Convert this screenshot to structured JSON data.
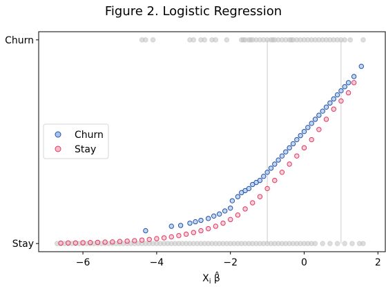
{
  "chart_data": {
    "type": "scatter",
    "title": "Figure 2. Logistic Regression",
    "xlabel": "X_i β̂",
    "ylabel": "",
    "xlim": [
      -7.2,
      2.2
    ],
    "ylim": [
      -0.04,
      1.04
    ],
    "x_ticks": [
      -6,
      -4,
      -2,
      0,
      2
    ],
    "x_tick_labels": [
      "−6",
      "−4",
      "−2",
      "0",
      "2"
    ],
    "y_ticks": [
      0,
      1
    ],
    "y_tick_labels": [
      "Stay",
      "Churn"
    ],
    "reference_lines_x": [
      -1,
      1
    ],
    "grid": false,
    "legend": {
      "placement": "center-left",
      "entries": [
        "Churn",
        "Stay"
      ]
    },
    "colors": {
      "churn_edge": "#1f4fa8",
      "churn_fill": "#a9c4ec",
      "stay_edge": "#e0365f",
      "stay_fill": "#f6bccb",
      "observed": "#bdbdbd",
      "refline": "#cccccc"
    },
    "series": [
      {
        "name": "Churn",
        "x": [
          -4.3,
          -3.6,
          -3.35,
          -3.1,
          -2.95,
          -2.8,
          -2.6,
          -2.45,
          -2.3,
          -2.15,
          -2.0,
          -1.95,
          -1.8,
          -1.7,
          -1.6,
          -1.5,
          -1.4,
          -1.3,
          -1.2,
          -1.1,
          -1.0,
          -0.9,
          -0.8,
          -0.7,
          -0.6,
          -0.5,
          -0.4,
          -0.3,
          -0.2,
          -0.1,
          0.0,
          0.1,
          0.2,
          0.3,
          0.4,
          0.5,
          0.6,
          0.7,
          0.8,
          0.9,
          1.0,
          1.1,
          1.2,
          1.35,
          1.55
        ],
        "y": [
          0.063,
          0.085,
          0.089,
          0.1,
          0.107,
          0.114,
          0.123,
          0.135,
          0.145,
          0.16,
          0.174,
          0.21,
          0.23,
          0.25,
          0.26,
          0.27,
          0.29,
          0.3,
          0.31,
          0.33,
          0.35,
          0.37,
          0.39,
          0.41,
          0.43,
          0.45,
          0.47,
          0.49,
          0.51,
          0.53,
          0.55,
          0.57,
          0.59,
          0.61,
          0.63,
          0.65,
          0.67,
          0.69,
          0.71,
          0.73,
          0.75,
          0.77,
          0.79,
          0.82,
          0.87
        ]
      },
      {
        "name": "Stay",
        "x": [
          -6.6,
          -6.4,
          -6.2,
          -6.0,
          -5.8,
          -5.6,
          -5.4,
          -5.2,
          -5.0,
          -4.8,
          -4.6,
          -4.4,
          -4.2,
          -4.0,
          -3.8,
          -3.6,
          -3.4,
          -3.2,
          -3.0,
          -2.8,
          -2.6,
          -2.4,
          -2.2,
          -2.0,
          -1.8,
          -1.6,
          -1.4,
          -1.2,
          -1.0,
          -0.8,
          -0.6,
          -0.4,
          -0.2,
          0.0,
          0.2,
          0.4,
          0.6,
          0.8,
          1.0,
          1.2,
          1.35
        ],
        "y": [
          0.002,
          0.003,
          0.003,
          0.004,
          0.005,
          0.006,
          0.007,
          0.008,
          0.01,
          0.012,
          0.014,
          0.017,
          0.02,
          0.024,
          0.028,
          0.033,
          0.039,
          0.046,
          0.054,
          0.063,
          0.073,
          0.085,
          0.1,
          0.118,
          0.14,
          0.17,
          0.2,
          0.23,
          0.27,
          0.31,
          0.35,
          0.39,
          0.43,
          0.47,
          0.51,
          0.56,
          0.61,
          0.66,
          0.7,
          0.74,
          0.79
        ]
      },
      {
        "name": "",
        "role": "observed-churn",
        "y_value": 1,
        "x": [
          -4.4,
          -4.3,
          -4.1,
          -3.1,
          -3.0,
          -2.8,
          -2.7,
          -2.5,
          -2.4,
          -2.1,
          -1.7,
          -1.65,
          -1.6,
          -1.5,
          -1.45,
          -1.4,
          -1.3,
          -1.2,
          -1.1,
          -1.0,
          -0.9,
          -0.85,
          -0.8,
          -0.7,
          -0.6,
          -0.5,
          -0.4,
          -0.35,
          -0.3,
          -0.2,
          -0.1,
          0.0,
          0.1,
          0.2,
          0.3,
          0.4,
          0.5,
          0.6,
          0.7,
          0.8,
          0.9,
          1.0,
          1.1,
          1.25,
          1.6
        ]
      },
      {
        "name": "",
        "role": "observed-stay",
        "y_value": 0,
        "x": [
          -6.7,
          -6.6,
          -6.5,
          -6.4,
          -6.3,
          -6.2,
          -6.1,
          -6.0,
          -5.9,
          -5.8,
          -5.7,
          -5.6,
          -5.5,
          -5.4,
          -5.3,
          -5.2,
          -5.1,
          -5.0,
          -4.9,
          -4.8,
          -4.7,
          -4.6,
          -4.5,
          -4.4,
          -4.3,
          -4.2,
          -4.1,
          -4.0,
          -3.9,
          -3.8,
          -3.7,
          -3.6,
          -3.5,
          -3.4,
          -3.3,
          -3.2,
          -3.1,
          -3.0,
          -2.9,
          -2.8,
          -2.7,
          -2.6,
          -2.5,
          -2.4,
          -2.3,
          -2.2,
          -2.1,
          -2.0,
          -1.9,
          -1.8,
          -1.7,
          -1.6,
          -1.5,
          -1.4,
          -1.3,
          -1.2,
          -1.1,
          -1.0,
          -0.9,
          -0.8,
          -0.7,
          -0.6,
          -0.5,
          -0.4,
          -0.3,
          -0.2,
          -0.1,
          0.0,
          0.1,
          0.2,
          0.3,
          0.5,
          0.7,
          0.9,
          1.1,
          1.3,
          1.5,
          1.6
        ]
      }
    ]
  }
}
